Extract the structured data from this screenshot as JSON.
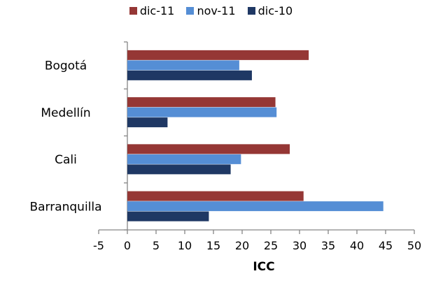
{
  "chart_data": {
    "type": "bar",
    "orientation": "horizontal",
    "categories": [
      "Bogotá",
      "Medellín",
      "Cali",
      "Barranquilla"
    ],
    "series": [
      {
        "name": "dic-11",
        "color": "#953735",
        "values": [
          31.6,
          25.8,
          28.3,
          30.7
        ]
      },
      {
        "name": "nov-11",
        "color": "#558ED5",
        "values": [
          19.5,
          26.0,
          19.8,
          44.6
        ]
      },
      {
        "name": "dic-10",
        "color": "#1F3864",
        "values": [
          21.7,
          7.0,
          18.0,
          14.2
        ]
      }
    ],
    "xlim": [
      -5,
      50
    ],
    "xticks": [
      -5,
      0,
      5,
      10,
      15,
      20,
      25,
      30,
      35,
      40,
      45,
      50
    ],
    "xlabel": "ICC",
    "ylabel": "",
    "title": "",
    "grid": false,
    "legend_position": "top"
  }
}
